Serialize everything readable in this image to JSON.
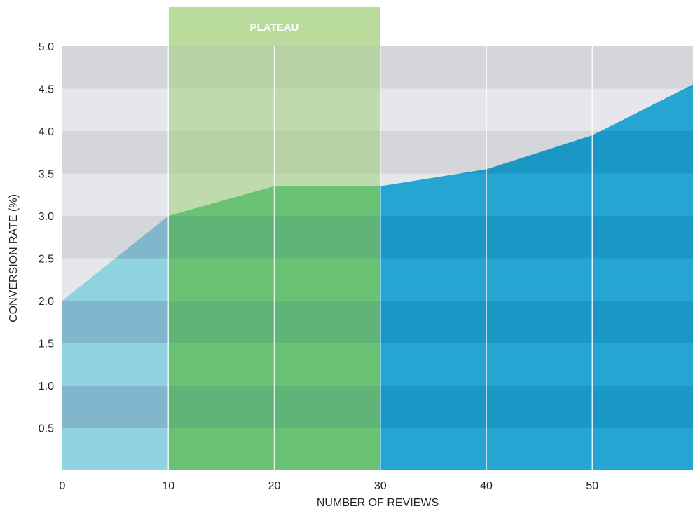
{
  "chart_data": {
    "type": "area",
    "x": [
      0,
      10,
      20,
      30,
      40,
      50,
      59.5
    ],
    "values": [
      2.0,
      3.0,
      3.35,
      3.35,
      3.55,
      3.95,
      4.55
    ],
    "xlabel": "NUMBER OF REVIEWS",
    "ylabel": "CONVERSION RATE (%)",
    "xlim": [
      0,
      59.5
    ],
    "ylim": [
      0,
      5.0
    ],
    "xticks": [
      0,
      10,
      20,
      30,
      40,
      50
    ],
    "xtick_labels": [
      "0",
      "10",
      "20",
      "30",
      "40",
      "50"
    ],
    "yticks": [
      0.5,
      1.0,
      1.5,
      2.0,
      2.5,
      3.0,
      3.5,
      4.0,
      4.5,
      5.0
    ],
    "ytick_labels": [
      "0.5",
      "1.0",
      "1.5",
      "2.0",
      "2.5",
      "3.0",
      "3.5",
      "4.0",
      "4.5",
      "5.0"
    ],
    "highlight_band": {
      "label": "PLATEAU",
      "x_start": 10,
      "x_end": 30
    },
    "grid": true,
    "colors": {
      "bg_band_dark": "#d5d6d9",
      "bg_band_light": "#e6e7ea",
      "area_left_light": "#8fd3e0",
      "area_left_dark": "#82b6cc",
      "area_plateau_light": "#2bb26f",
      "area_plateau_dark": "#189377",
      "area_right_light": "#27a5d2",
      "area_right_dark": "#1b97c5",
      "plateau_overlay": "#9fd07a",
      "plateau_header": "#b9dc9d"
    }
  }
}
